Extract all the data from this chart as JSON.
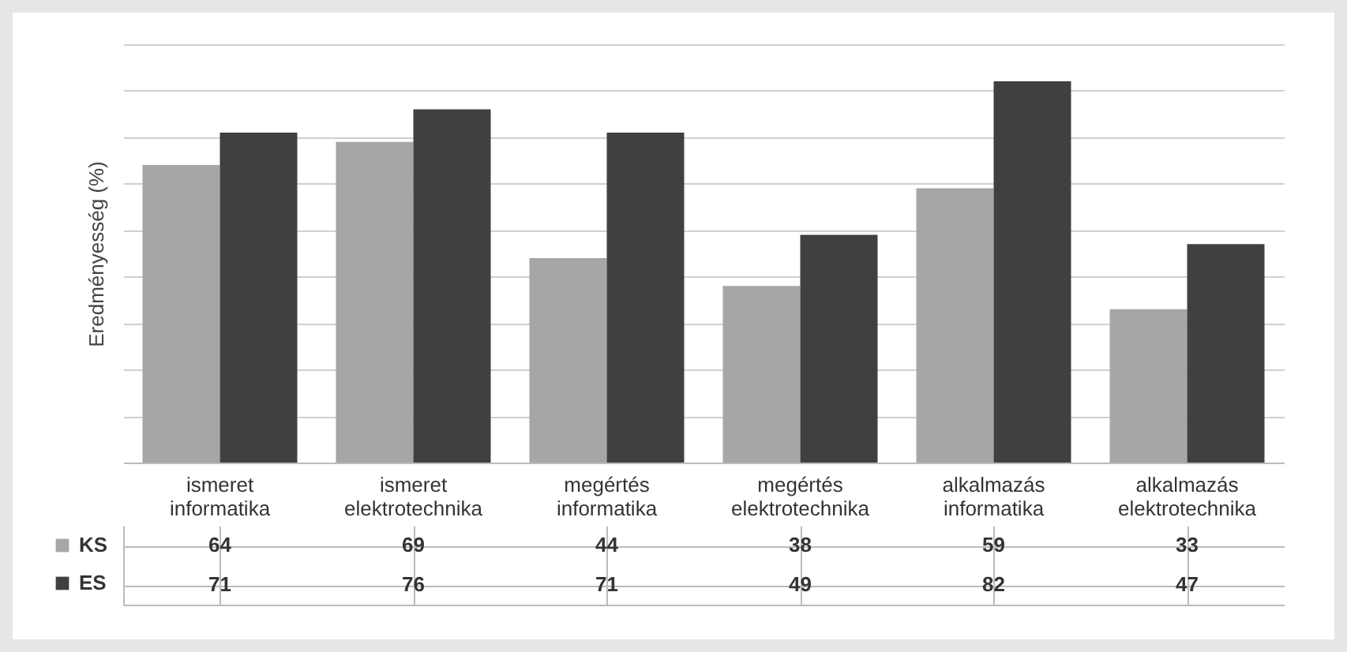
{
  "chart_data": {
    "type": "bar",
    "ylabel": "Eredményesség (%)",
    "categories": [
      "ismeret informatika",
      "ismeret elektrotechnika",
      "megértés informatika",
      "megértés elektrotechnika",
      "alkalmazás informatika",
      "alkalmazás elektrotechnika"
    ],
    "series": [
      {
        "name": "KS",
        "color": "#a6a6a6",
        "values": [
          64,
          69,
          44,
          38,
          59,
          33
        ]
      },
      {
        "name": "ES",
        "color": "#404040",
        "values": [
          71,
          76,
          71,
          49,
          82,
          47
        ]
      }
    ],
    "ylim": [
      0,
      90
    ],
    "yticks": [
      {
        "value": 0,
        "label": null
      },
      {
        "value": 10,
        "label": null
      },
      {
        "value": 20,
        "label": null
      },
      {
        "value": 30,
        "label": null
      },
      {
        "value": 40,
        "label": null
      },
      {
        "value": 50,
        "label": null
      },
      {
        "value": 60,
        "label": null
      },
      {
        "value": 70,
        "label": null
      },
      {
        "value": 80,
        "label": null
      },
      {
        "value": 90,
        "label": null
      }
    ],
    "grid": "y",
    "tick_labels": "x",
    "data_labels": true,
    "legend": "bottom left"
  }
}
